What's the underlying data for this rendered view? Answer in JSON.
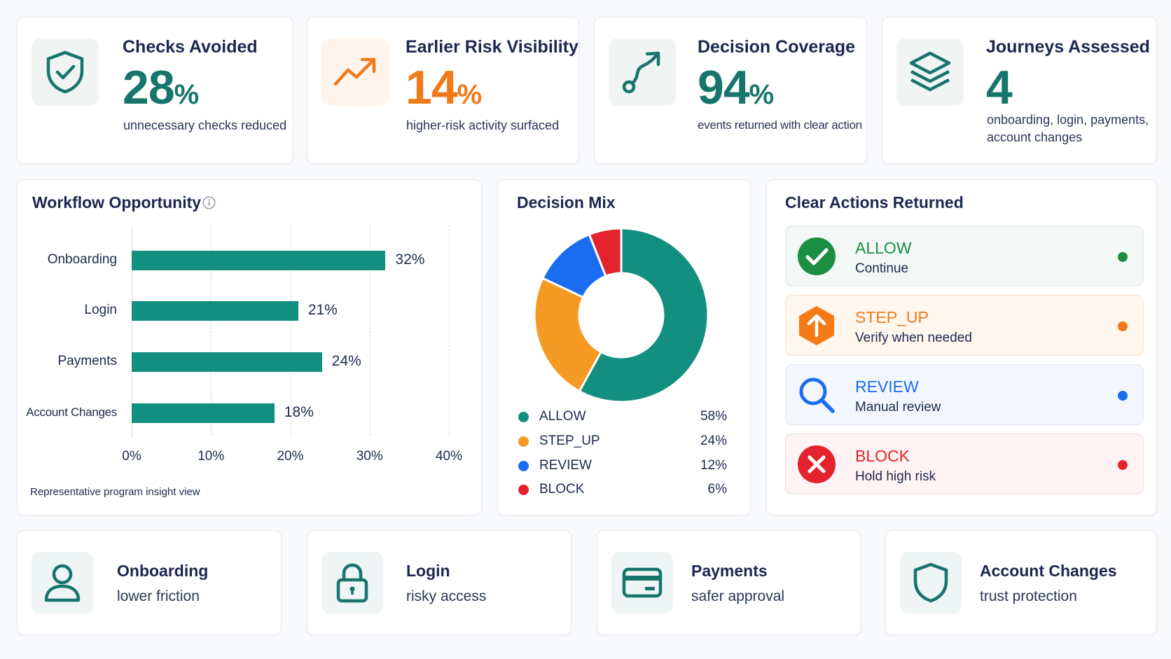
{
  "kpis": [
    {
      "title": "Checks Avoided",
      "value": "28",
      "unit": "%",
      "subtitle": "unnecessary checks reduced",
      "icon": "shield-check-icon",
      "color": "#17756b"
    },
    {
      "title": "Earlier Risk Visibility",
      "value": "14",
      "unit": "%",
      "subtitle": "higher-risk activity surfaced",
      "icon": "trend-up-icon",
      "color": "#f07a1a"
    },
    {
      "title": "Decision Coverage",
      "value": "94",
      "unit": "%",
      "subtitle": "events returned with clear action",
      "icon": "route-icon",
      "color": "#17756b"
    },
    {
      "title": "Journeys Assessed",
      "value": "4",
      "unit": "",
      "subtitle": "onboarding, login, payments, account changes",
      "icon": "layers-icon",
      "color": "#17756b"
    }
  ],
  "workflow": {
    "title": "Workflow Opportunity",
    "info_icon": "info-icon",
    "footnote": "Representative program insight view"
  },
  "decision_mix": {
    "title": "Decision Mix"
  },
  "chart_data": [
    {
      "type": "bar",
      "orientation": "horizontal",
      "title": "Workflow Opportunity",
      "categories": [
        "Onboarding",
        "Login",
        "Payments",
        "Account Changes"
      ],
      "values": [
        32,
        21,
        24,
        18
      ],
      "value_labels": [
        "32%",
        "21%",
        "24%",
        "18%"
      ],
      "xlim": [
        0,
        40
      ],
      "xticks": [
        "0%",
        "10%",
        "20%",
        "30%",
        "40%"
      ],
      "grid": "vertical dashed",
      "color": "#138f7f"
    },
    {
      "type": "pie",
      "style": "donut",
      "title": "Decision Mix",
      "legend_position": "bottom",
      "slices": [
        {
          "name": "ALLOW",
          "value": 58,
          "label": "58%",
          "color": "#138f7f"
        },
        {
          "name": "STEP_UP",
          "value": 24,
          "label": "24%",
          "color": "#f59a23"
        },
        {
          "name": "REVIEW",
          "value": 12,
          "label": "12%",
          "color": "#1a6df0"
        },
        {
          "name": "BLOCK",
          "value": 6,
          "label": "6%",
          "color": "#e5232e"
        }
      ]
    }
  ],
  "actions": {
    "title": "Clear Actions Returned",
    "items": [
      {
        "name": "ALLOW",
        "desc": "Continue",
        "color": "#1a8f42",
        "bg": "#f3f7f6",
        "border": "#e0ebe8",
        "icon": "check-circle-icon"
      },
      {
        "name": "STEP_UP",
        "desc": "Verify when needed",
        "color": "#f07a1a",
        "bg": "#fff6ee",
        "border": "#f9e3cf",
        "icon": "arrow-up-hexagon-icon"
      },
      {
        "name": "REVIEW",
        "desc": "Manual review",
        "color": "#1a6df0",
        "bg": "#f3f7fd",
        "border": "#dde8f7",
        "icon": "search-icon"
      },
      {
        "name": "BLOCK",
        "desc": "Hold high risk",
        "color": "#e5232e",
        "bg": "#fff3f3",
        "border": "#f7dede",
        "icon": "x-circle-icon"
      }
    ]
  },
  "journeys": [
    {
      "title": "Onboarding",
      "subtitle": "lower friction",
      "icon": "user-icon"
    },
    {
      "title": "Login",
      "subtitle": "risky access",
      "icon": "lock-icon"
    },
    {
      "title": "Payments",
      "subtitle": "safer approval",
      "icon": "credit-card-icon"
    },
    {
      "title": "Account Changes",
      "subtitle": "trust protection",
      "icon": "shield-icon"
    }
  ]
}
